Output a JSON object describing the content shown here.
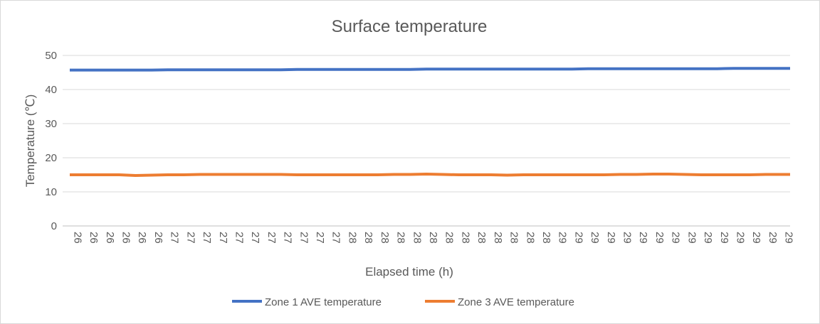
{
  "chart_data": {
    "type": "line",
    "title": "Surface temperature",
    "xlabel": "Elapsed time (h)",
    "ylabel": "Temperature (℃)",
    "ylim": [
      0,
      50
    ],
    "yticks": [
      0,
      10,
      20,
      30,
      40,
      50
    ],
    "grid": "horizontal",
    "legend_position": "bottom",
    "categories": [
      "26",
      "26",
      "26",
      "26",
      "26",
      "26",
      "27",
      "27",
      "27",
      "27",
      "27",
      "27",
      "27",
      "27",
      "27",
      "27",
      "27",
      "28",
      "28",
      "28",
      "28",
      "28",
      "28",
      "28",
      "28",
      "28",
      "28",
      "28",
      "28",
      "28",
      "29",
      "29",
      "29",
      "29",
      "29",
      "29",
      "29",
      "29",
      "29",
      "29",
      "29",
      "29",
      "29",
      "29",
      "29"
    ],
    "series": [
      {
        "name": "Zone 1 AVE temperature",
        "color": "#4472C4",
        "values": [
          45.7,
          45.7,
          45.7,
          45.7,
          45.7,
          45.7,
          45.8,
          45.8,
          45.8,
          45.8,
          45.8,
          45.8,
          45.8,
          45.8,
          45.9,
          45.9,
          45.9,
          45.9,
          45.9,
          45.9,
          45.9,
          45.9,
          46.0,
          46.0,
          46.0,
          46.0,
          46.0,
          46.0,
          46.0,
          46.0,
          46.0,
          46.0,
          46.1,
          46.1,
          46.1,
          46.1,
          46.1,
          46.1,
          46.1,
          46.1,
          46.1,
          46.2,
          46.2,
          46.2,
          46.2
        ]
      },
      {
        "name": "Zone 3 AVE temperature",
        "color": "#ED7D31",
        "values": [
          15.0,
          15.0,
          15.0,
          15.0,
          14.8,
          14.9,
          15.0,
          15.0,
          15.1,
          15.1,
          15.1,
          15.1,
          15.1,
          15.1,
          15.0,
          15.0,
          15.0,
          15.0,
          15.0,
          15.0,
          15.1,
          15.1,
          15.2,
          15.1,
          15.0,
          15.0,
          15.0,
          14.9,
          15.0,
          15.0,
          15.0,
          15.0,
          15.0,
          15.0,
          15.1,
          15.1,
          15.2,
          15.2,
          15.1,
          15.0,
          15.0,
          15.0,
          15.0,
          15.1,
          15.1
        ]
      }
    ]
  }
}
